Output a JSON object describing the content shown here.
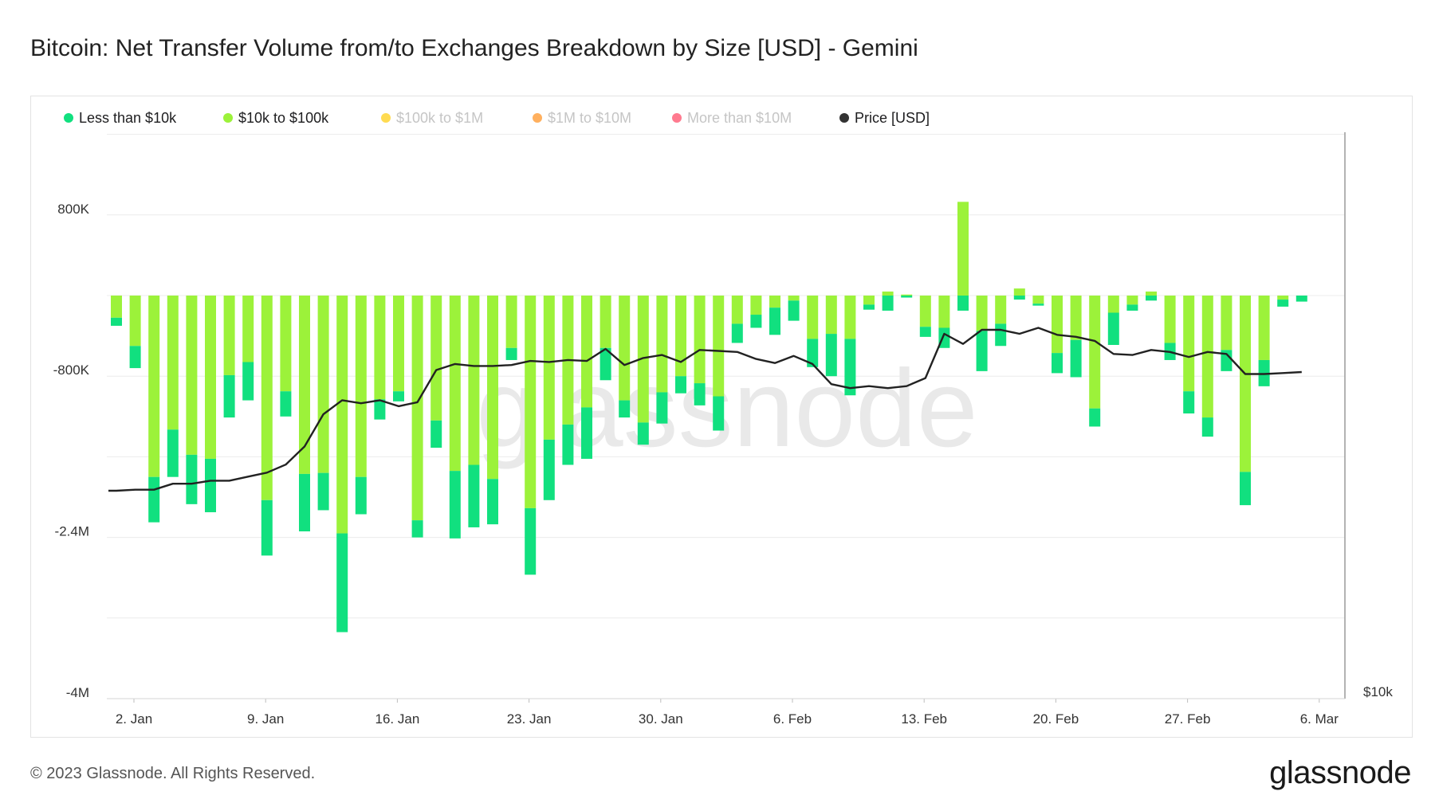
{
  "title": "Bitcoin: Net Transfer Volume from/to Exchanges Breakdown by Size [USD] - Gemini",
  "legend": [
    {
      "label": "Less than $10k",
      "color": "#11e07f",
      "active": true
    },
    {
      "label": "$10k to $100k",
      "color": "#9cf23a",
      "active": true
    },
    {
      "label": "$100k to $1M",
      "color": "#ffcf17",
      "active": false
    },
    {
      "label": "$1M to $10M",
      "color": "#ff9628",
      "active": false
    },
    {
      "label": "More than $10M",
      "color": "#ff4d6a",
      "active": false
    },
    {
      "label": "Price [USD]",
      "color": "#333333",
      "active": true
    }
  ],
  "watermark": "glassnode",
  "footer": {
    "copyright": "© 2023 Glassnode. All Rights Reserved.",
    "logo": "glassnode"
  },
  "chart_data": {
    "type": "bar",
    "stacked": true,
    "x_tick_labels": [
      "2. Jan",
      "9. Jan",
      "16. Jan",
      "23. Jan",
      "30. Jan",
      "6. Feb",
      "13. Feb",
      "20. Feb",
      "27. Feb",
      "6. Mar"
    ],
    "x_tick_days": [
      1,
      8,
      15,
      22,
      29,
      36,
      43,
      50,
      57,
      64
    ],
    "y_left_ticks": [
      800000,
      -800000,
      -2400000,
      -4000000
    ],
    "y_left_tick_labels": [
      "800K",
      "-800K",
      "-2.4M",
      "-4M"
    ],
    "y_left_range": [
      -4000000,
      1700000
    ],
    "y_right_tick_label": "$10k",
    "grid": true,
    "legend_position": "top-left",
    "days": [
      1,
      2,
      3,
      4,
      5,
      6,
      7,
      8,
      9,
      10,
      11,
      12,
      13,
      14,
      15,
      16,
      17,
      18,
      19,
      20,
      21,
      22,
      23,
      24,
      25,
      26,
      27,
      28,
      29,
      30,
      31,
      32,
      33,
      34,
      35,
      36,
      37,
      38,
      39,
      40,
      41,
      42,
      43,
      44,
      45,
      46,
      47,
      48,
      49,
      50,
      51,
      52,
      53,
      54,
      55,
      56,
      57,
      58,
      59,
      60,
      61,
      62,
      63,
      64
    ],
    "series": [
      {
        "name": "Less than $10k",
        "color": "#11e07f",
        "values": [
          -80000,
          -220000,
          -450000,
          -470000,
          -490000,
          -530000,
          -420000,
          -380000,
          -550000,
          -250000,
          -570000,
          -370000,
          -980000,
          -370000,
          -200000,
          -100000,
          -170000,
          -270000,
          -670000,
          -620000,
          -450000,
          -120000,
          -660000,
          -600000,
          -400000,
          -510000,
          -320000,
          -170000,
          -220000,
          -310000,
          -170000,
          -220000,
          -340000,
          -190000,
          -130000,
          -270000,
          -200000,
          -280000,
          -420000,
          -560000,
          -50000,
          -150000,
          -20000,
          -100000,
          -200000,
          -150000,
          -400000,
          -220000,
          -40000,
          -20000,
          -200000,
          -370000,
          -180000,
          -320000,
          -60000,
          -50000,
          -170000,
          -220000,
          -190000,
          -210000,
          -330000,
          -260000,
          -70000,
          -60000
        ]
      },
      {
        "name": "$10k to $100k",
        "color": "#9cf23a",
        "values": [
          -220000,
          -500000,
          -1800000,
          -1330000,
          -1580000,
          -1620000,
          -790000,
          -660000,
          -2030000,
          -950000,
          -1770000,
          -1760000,
          -2360000,
          -1800000,
          -1030000,
          -950000,
          -2230000,
          -1240000,
          -1740000,
          -1680000,
          -1820000,
          -520000,
          -2110000,
          -1430000,
          -1280000,
          -1110000,
          -520000,
          -1040000,
          -1260000,
          -960000,
          -800000,
          -870000,
          -1000000,
          -280000,
          -190000,
          -120000,
          -50000,
          -430000,
          -380000,
          -430000,
          -90000,
          40000,
          10000,
          -310000,
          -320000,
          930000,
          -350000,
          -280000,
          70000,
          -80000,
          -570000,
          -440000,
          -1120000,
          -170000,
          -90000,
          40000,
          -470000,
          -950000,
          -1210000,
          -540000,
          -1750000,
          -640000,
          -40000,
          null
        ],
        "notes_values_units": "USD"
      },
      {
        "name": "Price [USD]",
        "type": "line",
        "color": "#222222",
        "axis": "right",
        "values": [
          16600,
          16650,
          16650,
          16950,
          16950,
          17100,
          17100,
          17300,
          17500,
          17900,
          18800,
          20400,
          21100,
          20950,
          21100,
          20800,
          21000,
          22600,
          22900,
          22800,
          22800,
          22850,
          23050,
          23000,
          23100,
          23050,
          23650,
          22850,
          23200,
          23350,
          23000,
          23600,
          23550,
          23500,
          23150,
          22950,
          23300,
          22900,
          21900,
          21700,
          21800,
          21700,
          21800,
          22200,
          24400,
          23900,
          24600,
          24600,
          24400,
          24700,
          24350,
          24250,
          24050,
          23400,
          23350,
          23600,
          23500,
          23250,
          23500,
          23400,
          22400,
          22400,
          22450,
          22500
        ]
      }
    ]
  }
}
